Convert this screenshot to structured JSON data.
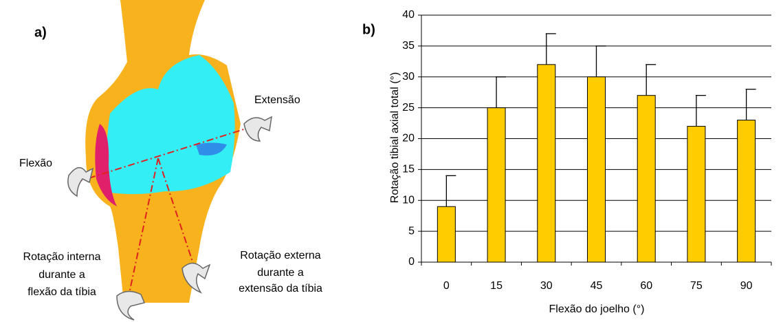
{
  "panel_a": {
    "label": "a)",
    "annotations": [
      {
        "lines": [
          "Extensão"
        ]
      },
      {
        "lines": [
          "Flexão"
        ]
      },
      {
        "lines": [
          "Rotação interna",
          "durante a",
          "flexão da tíbia"
        ]
      },
      {
        "lines": [
          "Rotação externa",
          "durante a",
          "extensão da tíbia"
        ]
      }
    ]
  },
  "chart_data": {
    "type": "bar",
    "panel_label": "b)",
    "x_label": "Flexão do joelho (°)",
    "y_label": "Rotação tibial axial total (°)",
    "categories": [
      "0",
      "15",
      "30",
      "45",
      "60",
      "75",
      "90"
    ],
    "values": [
      9,
      25,
      32,
      30,
      27,
      22,
      23
    ],
    "errors": [
      5,
      5,
      5,
      5,
      5,
      5,
      5
    ],
    "color": "#ffcc00",
    "ylim": [
      0,
      40
    ],
    "yticks": [
      0,
      5,
      10,
      15,
      20,
      25,
      30,
      35,
      40
    ],
    "grid": true
  }
}
